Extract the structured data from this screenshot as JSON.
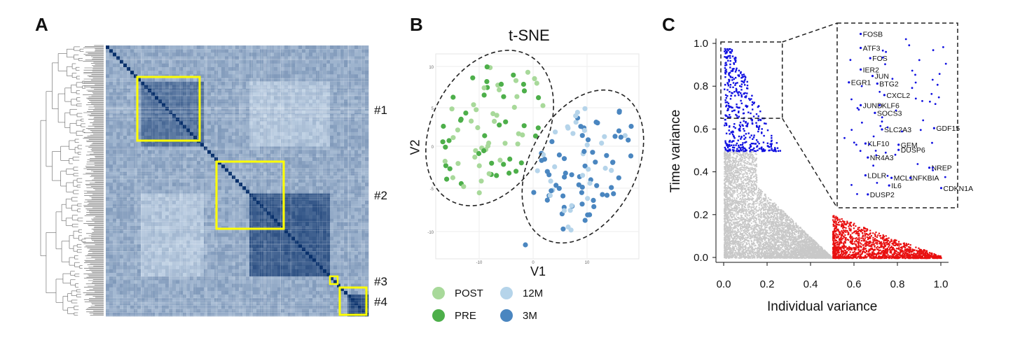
{
  "panels": {
    "a": "A",
    "b": "B",
    "c": "C"
  },
  "panelA": {
    "cluster_labels": [
      "#1",
      "#2",
      "#3",
      "#4"
    ],
    "colors": {
      "heatmap_light": "#dbe9f6",
      "heatmap_dark": "#08306b",
      "highlight_box": "#ffff00"
    }
  },
  "panelB": {
    "title": "t-SNE",
    "xlabel": "V1",
    "ylabel": "V2",
    "x_ticks": [
      "-10",
      "0",
      "10"
    ],
    "y_ticks": [
      "10",
      "5",
      "0",
      "-5",
      "-10"
    ],
    "legend": [
      {
        "label": "POST",
        "color": "#a8d99a"
      },
      {
        "label": "12M",
        "color": "#b5d4ea"
      },
      {
        "label": "PRE",
        "color": "#4daf4a"
      },
      {
        "label": "3M",
        "color": "#4a86c0"
      }
    ]
  },
  "chart_data": {
    "type": "scatter",
    "xlabel": "Individual variance",
    "ylabel": "Time variance",
    "xlim": [
      0.0,
      1.0
    ],
    "ylim": [
      0.0,
      1.0
    ],
    "x_ticks": [
      "0.0",
      "0.2",
      "0.4",
      "0.6",
      "0.8",
      "1.0"
    ],
    "y_ticks": [
      "0.0",
      "0.2",
      "0.4",
      "0.6",
      "0.8",
      "1.0"
    ],
    "series": [
      {
        "color": "#c8c8c8",
        "region": "time<0.5 and individual<0.5"
      },
      {
        "color": "#1010e0",
        "region": "time>=0.5 and individual<0.25"
      },
      {
        "color": "#e81010",
        "region": "individual>=0.5 and time<0.2"
      }
    ],
    "inset": {
      "xlim": [
        0.0,
        0.27
      ],
      "ylim": [
        0.65,
        1.0
      ],
      "labeled_genes": [
        {
          "label": "FOSB",
          "x": 0.57,
          "y": 0.985
        },
        {
          "label": "ATF3",
          "x": 0.57,
          "y": 0.93
        },
        {
          "label": "FOS",
          "x": 0.61,
          "y": 0.89
        },
        {
          "label": "IER2",
          "x": 0.57,
          "y": 0.845
        },
        {
          "label": "JUN",
          "x": 0.62,
          "y": 0.82
        },
        {
          "label": "EGR1",
          "x": 0.52,
          "y": 0.795
        },
        {
          "label": "BTG2",
          "x": 0.64,
          "y": 0.79
        },
        {
          "label": "CXCL2",
          "x": 0.67,
          "y": 0.745
        },
        {
          "label": "JUND",
          "x": 0.57,
          "y": 0.705
        },
        {
          "label": "KLF6",
          "x": 0.65,
          "y": 0.705
        },
        {
          "label": "SOCS3",
          "x": 0.63,
          "y": 0.675
        },
        {
          "label": "GDF15",
          "x": 0.88,
          "y": 0.615
        },
        {
          "label": "SLC2A3",
          "x": 0.66,
          "y": 0.61
        },
        {
          "label": "KLF10",
          "x": 0.59,
          "y": 0.555
        },
        {
          "label": "GEM",
          "x": 0.73,
          "y": 0.55
        },
        {
          "label": "DUSP6",
          "x": 0.73,
          "y": 0.53
        },
        {
          "label": "NR4A3",
          "x": 0.6,
          "y": 0.5
        },
        {
          "label": "NREP",
          "x": 0.86,
          "y": 0.46
        },
        {
          "label": "LDLR",
          "x": 0.59,
          "y": 0.43
        },
        {
          "label": "MCL1",
          "x": 0.7,
          "y": 0.42
        },
        {
          "label": "NFKBIA",
          "x": 0.78,
          "y": 0.42
        },
        {
          "label": "IL6",
          "x": 0.69,
          "y": 0.39
        },
        {
          "label": "CDKN1A",
          "x": 0.91,
          "y": 0.38
        },
        {
          "label": "DUSP2",
          "x": 0.6,
          "y": 0.355
        }
      ]
    }
  }
}
